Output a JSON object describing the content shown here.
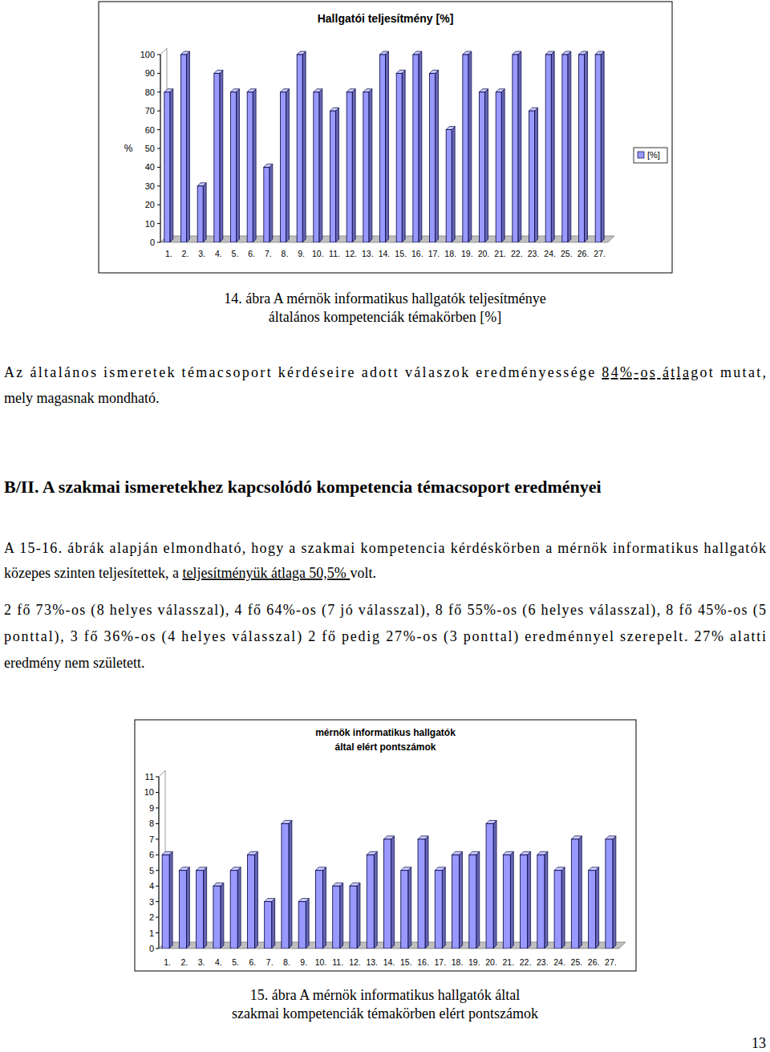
{
  "chart_data": [
    {
      "type": "bar",
      "title": "Hallgatói teljesítmény [%]",
      "y_label": "%",
      "categories": [
        "1.",
        "2.",
        "3.",
        "4.",
        "5.",
        "6.",
        "7.",
        "8.",
        "9.",
        "10.",
        "11.",
        "12.",
        "13.",
        "14.",
        "15.",
        "16.",
        "17.",
        "18.",
        "19.",
        "20.",
        "21.",
        "22.",
        "23.",
        "24.",
        "25.",
        "26.",
        "27."
      ],
      "series": [
        {
          "name": "[%]",
          "color": "#9999ff",
          "values": [
            80,
            100,
            30,
            90,
            80,
            80,
            40,
            80,
            100,
            80,
            70,
            80,
            80,
            100,
            90,
            100,
            90,
            60,
            100,
            80,
            80,
            100,
            70,
            100,
            100,
            100,
            100
          ]
        }
      ],
      "ylim": [
        0,
        100
      ],
      "yticks": [
        0,
        10,
        20,
        30,
        40,
        50,
        60,
        70,
        80,
        90,
        100
      ],
      "legend": "right"
    },
    {
      "type": "bar",
      "title": "mérnök informatikus hallgatók\náltal elért pontszámok",
      "categories": [
        "1.",
        "2.",
        "3.",
        "4.",
        "5.",
        "6.",
        "7.",
        "8.",
        "9.",
        "10.",
        "11.",
        "12.",
        "13.",
        "14.",
        "15.",
        "16.",
        "17.",
        "18.",
        "19.",
        "20.",
        "21.",
        "22.",
        "23.",
        "24.",
        "25.",
        "26.",
        "27."
      ],
      "values": [
        6,
        5,
        5,
        4,
        5,
        6,
        3,
        8,
        3,
        5,
        4,
        4,
        6,
        7,
        5,
        7,
        5,
        6,
        6,
        8,
        6,
        6,
        6,
        5,
        7,
        5,
        7
      ],
      "color": "#9999ff",
      "ylim": [
        0,
        11
      ],
      "yticks": [
        0,
        1,
        2,
        3,
        4,
        5,
        6,
        7,
        8,
        9,
        10,
        11
      ]
    }
  ],
  "document": {
    "caption14": [
      "14. ábra A mérnök informatikus hallgatók teljesítménye",
      "általános kompetenciák témakörben [%]"
    ],
    "paragraph1": [
      [
        "Az általános ismeretek témacsoport kérdéseire adott válaszok eredményessége ",
        "84%-os átlag",
        "ot mutat,"
      ],
      [
        "mely magasnak mondható."
      ]
    ],
    "heading": "B/II. A szakmai ismeretekhez kapcsolódó kompetencia témacsoport eredményei",
    "paragraph2": [
      [
        "A 15-16. ábrák alapján elmondható, hogy a szakmai kompetencia kérdéskörben a mérnök informatikus hallgatók"
      ],
      [
        "közepes szinten teljesítettek, a ",
        "teljesítményük átlaga 50,5% ",
        "volt."
      ]
    ],
    "paragraph3": [
      [
        "2 fő 73%-os (8 helyes válasszal), 4 fő 64%-os (7 jó válasszal), 8 fő 55%-os (6 helyes válasszal), 8 fő 45%-os (5"
      ],
      [
        "ponttal), 3 fő 36%-os (4 helyes válasszal) 2 fő pedig 27%-os (3 ponttal) eredménnyel szerepelt. 27% alatti"
      ],
      [
        "eredmény nem született."
      ]
    ],
    "caption15": [
      "15. ábra A mérnök informatikus hallgatók által",
      "szakmai kompetenciák témakörben elért pontszámok"
    ],
    "page_number": "13"
  }
}
